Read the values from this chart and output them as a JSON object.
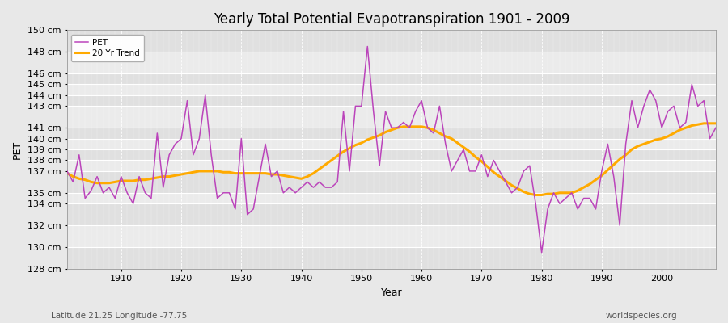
{
  "title": "Yearly Total Potential Evapotranspiration 1901 - 2009",
  "xlabel": "Year",
  "ylabel": "PET",
  "subtitle_left": "Latitude 21.25 Longitude -77.75",
  "subtitle_right": "worldspecies.org",
  "pet_color": "#bb44bb",
  "trend_color": "#ffaa00",
  "bg_color": "#e8e8e8",
  "band_color_light": "#e8e8e8",
  "band_color_dark": "#d8d8d8",
  "ylim": [
    128,
    150
  ],
  "xlim": [
    1901,
    2009
  ],
  "ytick_vals": [
    128,
    130,
    132,
    134,
    135,
    137,
    138,
    139,
    140,
    141,
    143,
    144,
    145,
    146,
    148,
    150
  ],
  "ytick_labels": [
    "128 cm",
    "130 cm",
    "132 cm",
    "134 cm",
    "135 cm",
    "137 cm",
    "138 cm",
    "139 cm",
    "140 cm",
    "141 cm",
    "143 cm",
    "144 cm",
    "145 cm",
    "146 cm",
    "148 cm",
    "150 cm"
  ],
  "xtick_vals": [
    1910,
    1920,
    1930,
    1940,
    1950,
    1960,
    1970,
    1980,
    1990,
    2000
  ],
  "years": [
    1901,
    1902,
    1903,
    1904,
    1905,
    1906,
    1907,
    1908,
    1909,
    1910,
    1911,
    1912,
    1913,
    1914,
    1915,
    1916,
    1917,
    1918,
    1919,
    1920,
    1921,
    1922,
    1923,
    1924,
    1925,
    1926,
    1927,
    1928,
    1929,
    1930,
    1931,
    1932,
    1933,
    1934,
    1935,
    1936,
    1937,
    1938,
    1939,
    1940,
    1941,
    1942,
    1943,
    1944,
    1945,
    1946,
    1947,
    1948,
    1949,
    1950,
    1951,
    1952,
    1953,
    1954,
    1955,
    1956,
    1957,
    1958,
    1959,
    1960,
    1961,
    1962,
    1963,
    1964,
    1965,
    1966,
    1967,
    1968,
    1969,
    1970,
    1971,
    1972,
    1973,
    1974,
    1975,
    1976,
    1977,
    1978,
    1979,
    1980,
    1981,
    1982,
    1983,
    1984,
    1985,
    1986,
    1987,
    1988,
    1989,
    1990,
    1991,
    1992,
    1993,
    1994,
    1995,
    1996,
    1997,
    1998,
    1999,
    2000,
    2001,
    2002,
    2003,
    2004,
    2005,
    2006,
    2007,
    2008,
    2009
  ],
  "pet_values": [
    137.0,
    136.0,
    138.5,
    134.5,
    135.2,
    136.5,
    135.0,
    135.5,
    134.5,
    136.5,
    135.0,
    134.0,
    136.5,
    135.0,
    134.5,
    140.5,
    135.5,
    138.5,
    139.5,
    140.0,
    143.5,
    138.5,
    140.0,
    144.0,
    138.5,
    134.5,
    135.0,
    135.0,
    133.5,
    140.0,
    133.0,
    133.5,
    136.5,
    139.5,
    136.5,
    137.0,
    135.0,
    135.5,
    135.0,
    135.5,
    136.0,
    135.5,
    136.0,
    135.5,
    135.5,
    136.0,
    142.5,
    137.0,
    143.0,
    143.0,
    148.5,
    142.5,
    137.5,
    142.5,
    141.0,
    141.0,
    141.5,
    141.0,
    142.5,
    143.5,
    141.0,
    140.5,
    143.0,
    139.5,
    137.0,
    138.0,
    139.0,
    137.0,
    137.0,
    138.5,
    136.5,
    138.0,
    137.0,
    136.0,
    135.0,
    135.5,
    137.0,
    137.5,
    134.0,
    129.5,
    133.5,
    135.0,
    134.0,
    134.5,
    135.0,
    133.5,
    134.5,
    134.5,
    133.5,
    137.0,
    139.5,
    136.5,
    132.0,
    139.5,
    143.5,
    141.0,
    143.0,
    144.5,
    143.5,
    141.0,
    142.5,
    143.0,
    141.0,
    141.5,
    145.0,
    143.0,
    143.5,
    140.0,
    141.0
  ],
  "trend_values": [
    136.8,
    136.5,
    136.3,
    136.2,
    136.0,
    135.9,
    135.9,
    135.9,
    136.0,
    136.1,
    136.1,
    136.1,
    136.2,
    136.2,
    136.3,
    136.4,
    136.5,
    136.5,
    136.6,
    136.7,
    136.8,
    136.9,
    137.0,
    137.0,
    137.0,
    137.0,
    136.9,
    136.9,
    136.8,
    136.8,
    136.8,
    136.8,
    136.8,
    136.8,
    136.7,
    136.7,
    136.6,
    136.5,
    136.4,
    136.3,
    136.5,
    136.8,
    137.2,
    137.6,
    138.0,
    138.4,
    138.8,
    139.1,
    139.4,
    139.6,
    139.9,
    140.1,
    140.3,
    140.6,
    140.8,
    141.0,
    141.1,
    141.1,
    141.1,
    141.1,
    141.0,
    140.8,
    140.5,
    140.2,
    140.0,
    139.6,
    139.2,
    138.8,
    138.3,
    137.9,
    137.4,
    136.9,
    136.5,
    136.1,
    135.7,
    135.4,
    135.1,
    134.9,
    134.8,
    134.8,
    134.9,
    134.9,
    135.0,
    135.0,
    135.0,
    135.2,
    135.5,
    135.8,
    136.2,
    136.6,
    137.1,
    137.6,
    138.1,
    138.5,
    139.0,
    139.3,
    139.5,
    139.7,
    139.9,
    140.0,
    140.2,
    140.5,
    140.8,
    141.0,
    141.2,
    141.3,
    141.4,
    141.4,
    141.4
  ]
}
